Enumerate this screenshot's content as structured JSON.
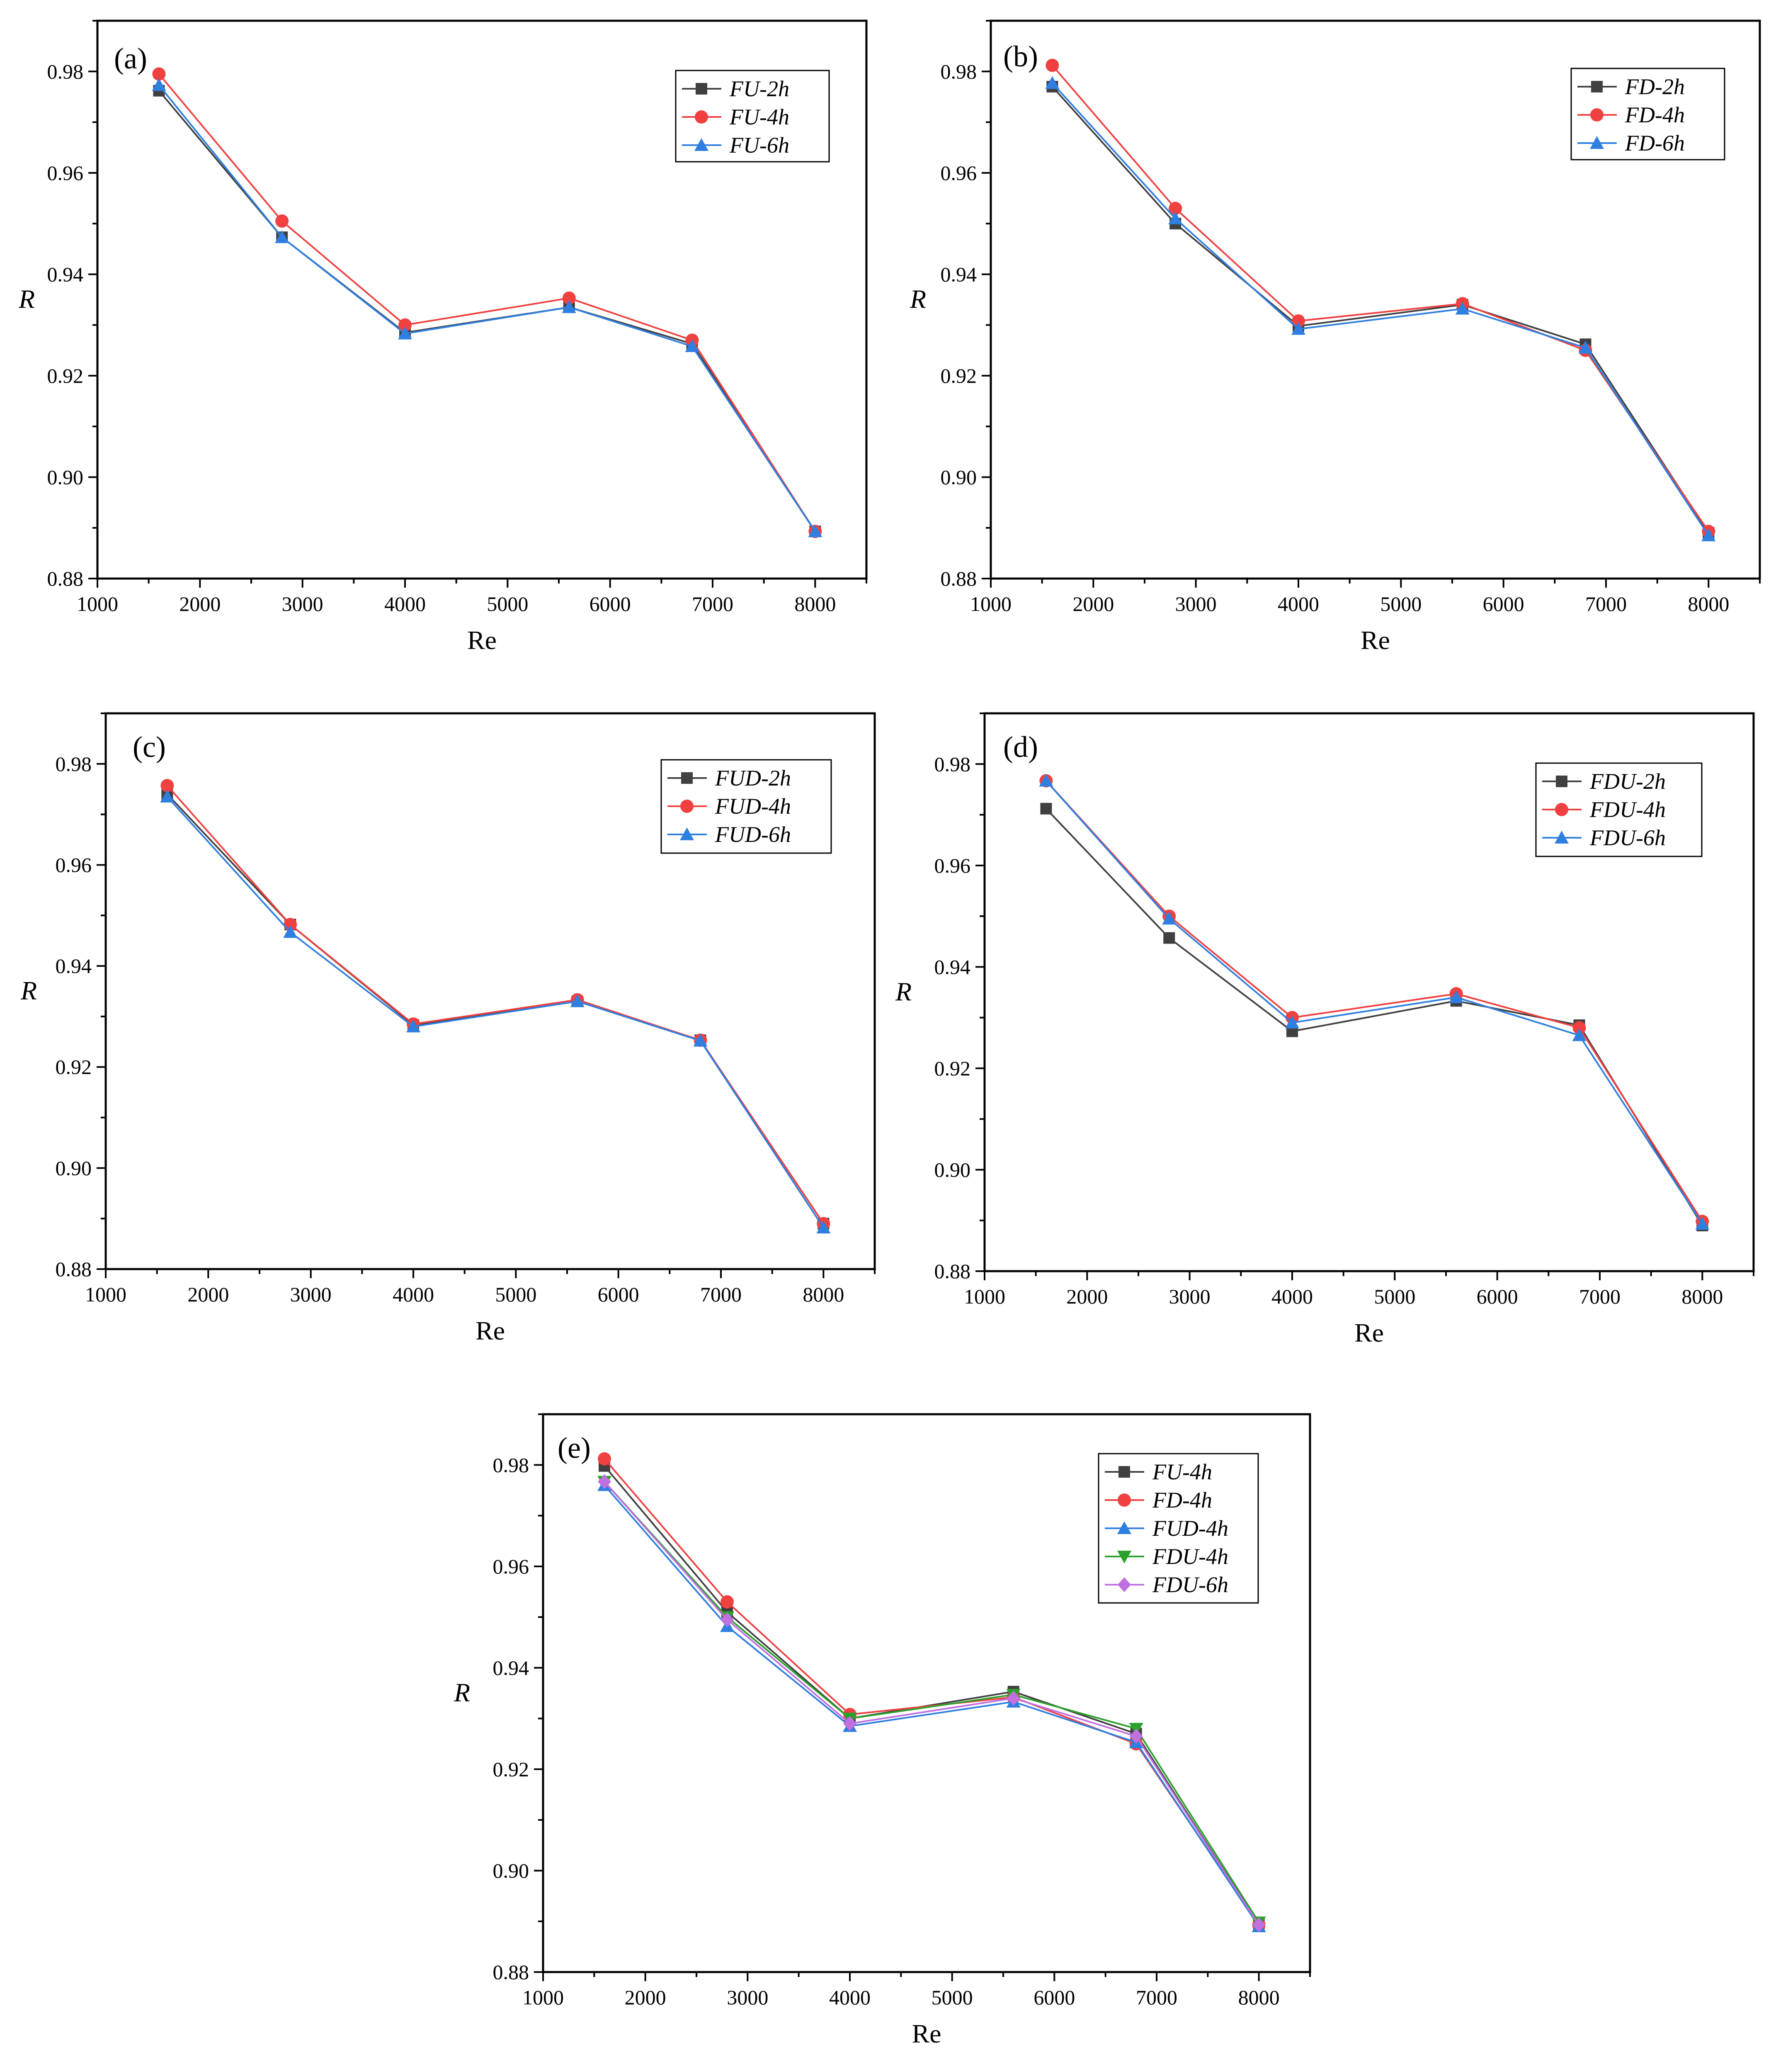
{
  "chart_data": [
    {
      "type": "line",
      "panel_label": "(a)",
      "xlabel": "Re",
      "ylabel": "R",
      "xlim": [
        1000,
        8500
      ],
      "ylim": [
        0.88,
        0.99
      ],
      "xticks": [
        1000,
        2000,
        3000,
        4000,
        5000,
        6000,
        7000,
        8000
      ],
      "yticks": [
        0.88,
        0.9,
        0.92,
        0.94,
        0.96,
        0.98
      ],
      "ytick_labels": [
        "0.88",
        "0.90",
        "0.92",
        "0.94",
        "0.96",
        "0.98"
      ],
      "legend_position": "top-right",
      "x": [
        1600,
        2800,
        4000,
        5600,
        6800,
        8000
      ],
      "series": [
        {
          "name": "FU-2h",
          "color": "#404040",
          "marker": "square",
          "values": [
            0.9762,
            0.9473,
            0.9285,
            0.9335,
            0.9263,
            0.8893
          ]
        },
        {
          "name": "FU-4h",
          "color": "#f04040",
          "marker": "circle",
          "values": [
            0.9795,
            0.9505,
            0.93,
            0.9353,
            0.927,
            0.8893
          ]
        },
        {
          "name": "FU-6h",
          "color": "#2f7fe0",
          "marker": "triangle-up",
          "values": [
            0.9773,
            0.9473,
            0.9283,
            0.9335,
            0.9258,
            0.8893
          ]
        }
      ]
    },
    {
      "type": "line",
      "panel_label": "(b)",
      "xlabel": "Re",
      "ylabel": "R",
      "xlim": [
        1000,
        8500
      ],
      "ylim": [
        0.88,
        0.99
      ],
      "xticks": [
        1000,
        2000,
        3000,
        4000,
        5000,
        6000,
        7000,
        8000
      ],
      "yticks": [
        0.88,
        0.9,
        0.92,
        0.94,
        0.96,
        0.98
      ],
      "ytick_labels": [
        "0.88",
        "0.90",
        "0.92",
        "0.94",
        "0.96",
        "0.98"
      ],
      "legend_position": "top-right",
      "x": [
        1600,
        2800,
        4000,
        5600,
        6800,
        8000
      ],
      "series": [
        {
          "name": "FD-2h",
          "color": "#404040",
          "marker": "square",
          "values": [
            0.977,
            0.95,
            0.9298,
            0.934,
            0.9262,
            0.889
          ]
        },
        {
          "name": "FD-4h",
          "color": "#f04040",
          "marker": "circle",
          "values": [
            0.9812,
            0.953,
            0.9308,
            0.9342,
            0.925,
            0.8893
          ]
        },
        {
          "name": "FD-6h",
          "color": "#2f7fe0",
          "marker": "triangle-up",
          "values": [
            0.9777,
            0.951,
            0.9292,
            0.9332,
            0.9255,
            0.8885
          ]
        }
      ]
    },
    {
      "type": "line",
      "panel_label": "(c)",
      "xlabel": "Re",
      "ylabel": "R",
      "xlim": [
        1000,
        8500
      ],
      "ylim": [
        0.88,
        0.99
      ],
      "xticks": [
        1000,
        2000,
        3000,
        4000,
        5000,
        6000,
        7000,
        8000
      ],
      "yticks": [
        0.88,
        0.9,
        0.92,
        0.94,
        0.96,
        0.98
      ],
      "ytick_labels": [
        "0.88",
        "0.90",
        "0.92",
        "0.94",
        "0.96",
        "0.98"
      ],
      "legend_position": "top-right",
      "x": [
        1600,
        2800,
        4000,
        5600,
        6800,
        8000
      ],
      "series": [
        {
          "name": "FUD-2h",
          "color": "#404040",
          "marker": "square",
          "values": [
            0.974,
            0.9482,
            0.9283,
            0.933,
            0.9253,
            0.889
          ]
        },
        {
          "name": "FUD-4h",
          "color": "#f04040",
          "marker": "circle",
          "values": [
            0.9757,
            0.9482,
            0.9285,
            0.9333,
            0.9253,
            0.889
          ]
        },
        {
          "name": "FUD-6h",
          "color": "#2f7fe0",
          "marker": "triangle-up",
          "values": [
            0.9735,
            0.9467,
            0.928,
            0.933,
            0.9252,
            0.8882
          ]
        }
      ]
    },
    {
      "type": "line",
      "panel_label": "(d)",
      "xlabel": "Re",
      "ylabel": "R",
      "xlim": [
        1000,
        8500
      ],
      "ylim": [
        0.88,
        0.99
      ],
      "xticks": [
        1000,
        2000,
        3000,
        4000,
        5000,
        6000,
        7000,
        8000
      ],
      "yticks": [
        0.88,
        0.9,
        0.92,
        0.94,
        0.96,
        0.98
      ],
      "ytick_labels": [
        "0.88",
        "0.90",
        "0.92",
        "0.94",
        "0.96",
        "0.98"
      ],
      "legend_position": "top-right",
      "x": [
        1600,
        2800,
        4000,
        5600,
        6800,
        8000
      ],
      "series": [
        {
          "name": "FDU-2h",
          "color": "#404040",
          "marker": "square",
          "values": [
            0.9712,
            0.9457,
            0.9273,
            0.9333,
            0.9285,
            0.889
          ]
        },
        {
          "name": "FDU-4h",
          "color": "#f04040",
          "marker": "circle",
          "values": [
            0.9767,
            0.95,
            0.93,
            0.9347,
            0.928,
            0.8898
          ]
        },
        {
          "name": "FDU-6h",
          "color": "#2f7fe0",
          "marker": "triangle-up",
          "values": [
            0.9767,
            0.9495,
            0.929,
            0.934,
            0.9265,
            0.8893
          ]
        }
      ]
    },
    {
      "type": "line",
      "panel_label": "(e)",
      "xlabel": "Re",
      "ylabel": "R",
      "xlim": [
        1000,
        8500
      ],
      "ylim": [
        0.88,
        0.99
      ],
      "xticks": [
        1000,
        2000,
        3000,
        4000,
        5000,
        6000,
        7000,
        8000
      ],
      "yticks": [
        0.88,
        0.9,
        0.92,
        0.94,
        0.96,
        0.98
      ],
      "ytick_labels": [
        "0.88",
        "0.90",
        "0.92",
        "0.94",
        "0.96",
        "0.98"
      ],
      "legend_position": "top-right",
      "x": [
        1600,
        2800,
        4000,
        5600,
        6800,
        8000
      ],
      "series": [
        {
          "name": "FU-4h",
          "color": "#404040",
          "marker": "square",
          "values": [
            0.9798,
            0.951,
            0.93,
            0.9353,
            0.927,
            0.8893
          ]
        },
        {
          "name": "FD-4h",
          "color": "#f04040",
          "marker": "circle",
          "values": [
            0.9812,
            0.953,
            0.9308,
            0.9342,
            0.925,
            0.8893
          ]
        },
        {
          "name": "FUD-4h",
          "color": "#2f7fe0",
          "marker": "triangle-up",
          "values": [
            0.976,
            0.9482,
            0.9285,
            0.9333,
            0.9253,
            0.889
          ]
        },
        {
          "name": "FDU-4h",
          "color": "#2ca02c",
          "marker": "triangle-down",
          "values": [
            0.9767,
            0.95,
            0.93,
            0.9347,
            0.928,
            0.8898
          ]
        },
        {
          "name": "FDU-6h",
          "color": "#c070e0",
          "marker": "diamond",
          "values": [
            0.9767,
            0.9495,
            0.929,
            0.934,
            0.9265,
            0.8893
          ]
        }
      ]
    }
  ]
}
